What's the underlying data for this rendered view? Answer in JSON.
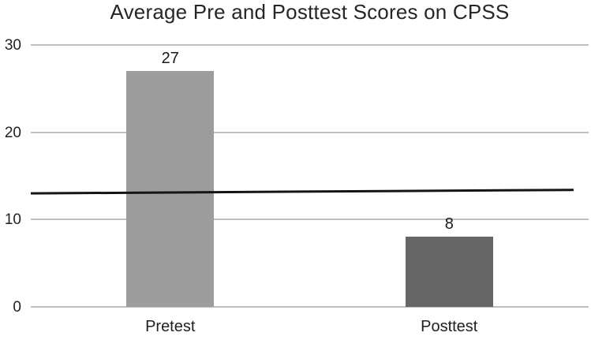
{
  "chart_data": {
    "type": "bar",
    "title": "Average Pre and Posttest Scores on CPSS",
    "categories": [
      "Pretest",
      "Posttest"
    ],
    "values": [
      27,
      8
    ],
    "data_labels": [
      "27",
      "8"
    ],
    "bar_colors": [
      "#9d9d9d",
      "#666666"
    ],
    "xlabel": "",
    "ylabel": "",
    "ylim": [
      0,
      30
    ],
    "yticks": [
      0,
      10,
      20,
      30
    ],
    "grid": "horizontal",
    "legend_position": "none",
    "reference_line": {
      "value_start": 13.0,
      "value_end": 13.4,
      "color": "#141414"
    },
    "colors": {
      "gridline": "#bfbfbf",
      "title_text": "#262626",
      "label_text": "#1f1f1f",
      "background": "#ffffff"
    }
  }
}
